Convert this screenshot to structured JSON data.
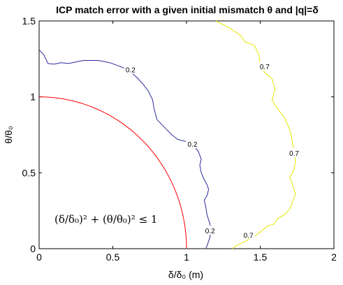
{
  "chart_data": {
    "type": "line",
    "title": "ICP match error with a given initial mismatch θ and |q|=δ",
    "xlabel": "δ/δ₀ (m)",
    "ylabel": "θ/θ₀",
    "xlim": [
      0,
      2
    ],
    "ylim": [
      0,
      1.5
    ],
    "x_ticks": [
      "0",
      "0.5",
      "1",
      "1.5",
      "2"
    ],
    "y_ticks": [
      "0",
      "0.5",
      "1",
      "1.5"
    ],
    "grid": false,
    "colors": {
      "red": "#ff0000",
      "blue": "#2b2b9b",
      "yellow": "#e6e600"
    },
    "annotation": "(δ/δ₀)² + (θ/θ₀)² ≤ 1",
    "contours": [
      {
        "level": "0.2",
        "color": "blue",
        "points": [
          [
            0,
            1.31
          ],
          [
            0.03,
            1.28
          ],
          [
            0.06,
            1.22
          ],
          [
            0.1,
            1.215
          ],
          [
            0.15,
            1.225
          ],
          [
            0.2,
            1.22
          ],
          [
            0.3,
            1.24
          ],
          [
            0.4,
            1.24
          ],
          [
            0.48,
            1.225
          ],
          [
            0.55,
            1.2
          ],
          [
            0.61,
            1.175
          ],
          [
            0.66,
            1.13
          ],
          [
            0.7,
            1.09
          ],
          [
            0.74,
            1.04
          ],
          [
            0.77,
            0.98
          ],
          [
            0.78,
            0.92
          ],
          [
            0.8,
            0.85
          ],
          [
            0.86,
            0.79
          ],
          [
            0.9,
            0.75
          ],
          [
            0.94,
            0.72
          ],
          [
            1.0,
            0.705
          ],
          [
            1.04,
            0.69
          ],
          [
            1.08,
            0.64
          ],
          [
            1.1,
            0.59
          ],
          [
            1.09,
            0.55
          ],
          [
            1.1,
            0.5
          ],
          [
            1.12,
            0.455
          ],
          [
            1.14,
            0.42
          ],
          [
            1.15,
            0.39
          ],
          [
            1.14,
            0.35
          ],
          [
            1.12,
            0.32
          ],
          [
            1.13,
            0.28
          ],
          [
            1.14,
            0.22
          ],
          [
            1.16,
            0.16
          ],
          [
            1.16,
            0.08
          ],
          [
            1.14,
            0.02
          ],
          [
            1.13,
            0
          ]
        ],
        "labels": [
          {
            "x": 0.62,
            "y": 1.18
          },
          {
            "x": 1.04,
            "y": 0.69
          },
          {
            "x": 1.16,
            "y": 0.12
          }
        ]
      },
      {
        "level": "0.7",
        "color": "yellow",
        "points": [
          [
            1.2,
            1.5
          ],
          [
            1.28,
            1.46
          ],
          [
            1.36,
            1.41
          ],
          [
            1.4,
            1.36
          ],
          [
            1.46,
            1.34
          ],
          [
            1.49,
            1.28
          ],
          [
            1.5,
            1.22
          ],
          [
            1.53,
            1.16
          ],
          [
            1.58,
            1.12
          ],
          [
            1.6,
            1.05
          ],
          [
            1.58,
            0.98
          ],
          [
            1.62,
            0.92
          ],
          [
            1.66,
            0.87
          ],
          [
            1.69,
            0.81
          ],
          [
            1.71,
            0.75
          ],
          [
            1.72,
            0.69
          ],
          [
            1.73,
            0.64
          ],
          [
            1.74,
            0.58
          ],
          [
            1.73,
            0.52
          ],
          [
            1.7,
            0.47
          ],
          [
            1.72,
            0.42
          ],
          [
            1.74,
            0.36
          ],
          [
            1.72,
            0.31
          ],
          [
            1.7,
            0.26
          ],
          [
            1.66,
            0.22
          ],
          [
            1.62,
            0.2
          ],
          [
            1.59,
            0.16
          ],
          [
            1.55,
            0.15
          ],
          [
            1.5,
            0.11
          ],
          [
            1.46,
            0.08
          ],
          [
            1.42,
            0.06
          ],
          [
            1.38,
            0.04
          ],
          [
            1.34,
            0.02
          ],
          [
            1.31,
            0
          ]
        ],
        "labels": [
          {
            "x": 1.53,
            "y": 1.2
          },
          {
            "x": 1.73,
            "y": 0.63
          },
          {
            "x": 1.42,
            "y": 0.09
          }
        ]
      }
    ],
    "circle": {
      "radius": 1,
      "color": "red"
    }
  }
}
